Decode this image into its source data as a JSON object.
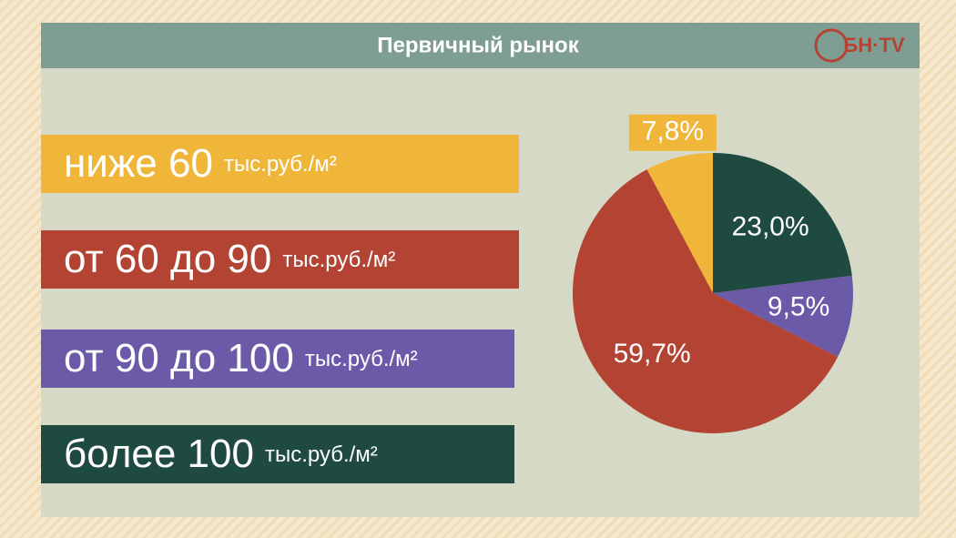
{
  "chart_data": {
    "type": "pie",
    "title": "Первичный рынок",
    "logo": "БН·TV",
    "categories": [
      "ниже 60",
      "от 60 до 90",
      "от 90 до 100",
      "более 100"
    ],
    "unit": "тыс.руб./м²",
    "values": [
      7.8,
      59.7,
      9.5,
      23.0
    ],
    "value_labels": [
      "7,8%",
      "59,7%",
      "9,5%",
      "23,0%"
    ],
    "colors": [
      "#f0b63a",
      "#b34434",
      "#6b5aa8",
      "#1e4a40"
    ]
  }
}
